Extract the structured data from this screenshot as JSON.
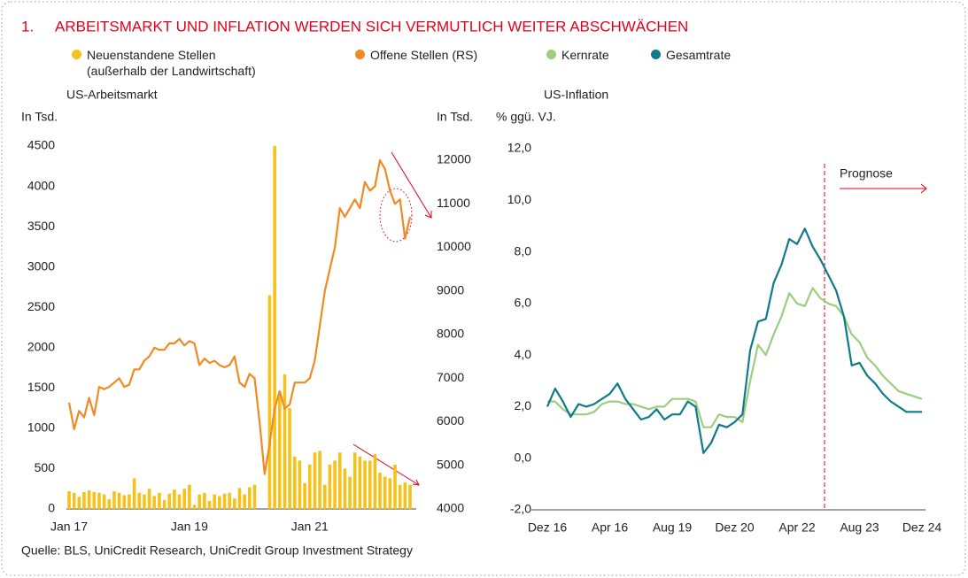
{
  "number": "1.",
  "title": "ARBEITSMARKT UND INFLATION WERDEN SICH VERMUTLICH WEITER ABSCHWÄCHEN",
  "source": "Quelle: BLS, UniCredit Research, UniCredit Group Investment Strategy",
  "chart_data": [
    {
      "type": "combo",
      "subtitle": "US-Arbeitsmarkt",
      "ylabel": "In Tsd.",
      "y2label": "In Tsd.",
      "categories": [
        "Jan 17",
        null,
        null,
        null,
        null,
        null,
        null,
        null,
        null,
        null,
        null,
        null,
        null,
        null,
        null,
        null,
        null,
        null,
        null,
        null,
        null,
        null,
        null,
        null,
        "Jan 19",
        null,
        null,
        null,
        null,
        null,
        null,
        null,
        null,
        null,
        null,
        null,
        null,
        null,
        null,
        null,
        null,
        null,
        null,
        null,
        null,
        null,
        null,
        null,
        "Jan 21",
        null,
        null,
        null,
        null,
        null,
        null,
        null,
        null,
        null,
        null,
        null,
        null,
        null,
        null,
        null,
        null,
        null,
        null,
        null,
        null
      ],
      "series": [
        {
          "name": "Neuenstandene Stellen\n(außerhalb der Landwirtschaft)",
          "type": "bar",
          "color": "#f5c21b",
          "values": [
            220,
            200,
            150,
            210,
            230,
            210,
            200,
            180,
            120,
            220,
            200,
            170,
            180,
            380,
            200,
            180,
            250,
            160,
            200,
            110,
            190,
            240,
            180,
            250,
            300,
            50,
            180,
            200,
            100,
            180,
            160,
            190,
            200,
            130,
            260,
            180,
            270,
            300,
            0,
            0,
            2650,
            4500,
            1450,
            1670,
            1250,
            650,
            600,
            320,
            550,
            700,
            720,
            300,
            550,
            600,
            700,
            500,
            400,
            700,
            650,
            600,
            600,
            680,
            450,
            400,
            380,
            550,
            300,
            330,
            300
          ]
        },
        {
          "name": "Offene Stellen (RS)",
          "type": "line",
          "axis": "y2",
          "color": "#f08a24",
          "values": [
            6440,
            5830,
            6250,
            6100,
            6550,
            6150,
            6800,
            6750,
            6800,
            6900,
            7000,
            6800,
            6850,
            7200,
            7200,
            7400,
            7500,
            7700,
            7650,
            7650,
            7800,
            7800,
            7900,
            7750,
            7850,
            7800,
            7300,
            7450,
            7350,
            7400,
            7300,
            7250,
            7300,
            7500,
            6900,
            6800,
            7100,
            7000,
            6000,
            4800,
            5500,
            6300,
            6700,
            6300,
            6400,
            6900,
            6900,
            6900,
            7000,
            7400,
            8200,
            9000,
            9500,
            10000,
            10900,
            10700,
            10900,
            11100,
            10900,
            11500,
            11300,
            11400,
            12000,
            11800,
            11300,
            11000,
            11100,
            10200,
            10700
          ]
        }
      ],
      "ylim": [
        0,
        4500
      ],
      "yticks": [
        0,
        500,
        1000,
        1500,
        2000,
        2500,
        3000,
        3500,
        4000,
        4500
      ],
      "y2lim": [
        4000,
        12000
      ],
      "y2ticks": [
        4000,
        5000,
        6000,
        7000,
        8000,
        9000,
        10000,
        11000,
        12000
      ],
      "grid": false
    },
    {
      "type": "line",
      "subtitle": "US-Inflation",
      "ylabel": "% ggü. VJ.",
      "annotation": "Prognose",
      "categories": [
        "Dez 16",
        null,
        null,
        null,
        null,
        null,
        null,
        null,
        "Apr 16",
        null,
        null,
        null,
        null,
        null,
        null,
        null,
        "Aug 19",
        null,
        null,
        null,
        null,
        null,
        null,
        null,
        "Dez 20",
        null,
        null,
        null,
        null,
        null,
        null,
        null,
        "Apr 22",
        null,
        null,
        null,
        null,
        null,
        null,
        null,
        "Aug 23",
        null,
        null,
        null,
        null,
        null,
        null,
        null,
        "Dez 24"
      ],
      "series": [
        {
          "name": "Kernrate",
          "color": "#9dcd7f",
          "values": [
            2.2,
            2.2,
            1.9,
            1.7,
            1.7,
            1.7,
            1.8,
            2.1,
            2.2,
            2.2,
            2.1,
            2.1,
            2.0,
            1.9,
            2.0,
            2.0,
            2.3,
            2.3,
            2.3,
            2.2,
            1.2,
            1.2,
            1.7,
            1.6,
            1.6,
            1.4,
            3.0,
            4.4,
            4.0,
            4.8,
            5.5,
            6.4,
            6.0,
            5.9,
            6.6,
            6.2,
            6.0,
            5.9,
            5.5,
            4.8,
            4.5,
            3.9,
            3.6,
            3.2,
            2.9,
            2.6,
            2.5,
            2.4,
            2.3
          ]
        },
        {
          "name": "Gesamtrate",
          "color": "#0f7a8a",
          "values": [
            2.0,
            2.7,
            2.2,
            1.6,
            2.1,
            2.0,
            2.1,
            2.3,
            2.5,
            2.9,
            2.3,
            1.9,
            1.5,
            1.6,
            1.9,
            1.5,
            1.7,
            1.7,
            2.2,
            2.0,
            0.2,
            0.6,
            1.3,
            1.2,
            1.4,
            1.7,
            4.2,
            5.3,
            5.4,
            6.8,
            7.5,
            8.5,
            8.3,
            8.9,
            8.2,
            7.7,
            7.1,
            6.5,
            5.5,
            3.6,
            3.7,
            3.2,
            2.9,
            2.5,
            2.2,
            2.0,
            1.8,
            1.8,
            1.8
          ]
        }
      ],
      "ylim": [
        -2,
        12
      ],
      "yticks": [
        {
          "value": -2,
          "label": "-2,0"
        },
        {
          "value": 0,
          "label": "0,0"
        },
        {
          "value": 2,
          "label": "2,0"
        },
        {
          "value": 4,
          "label": "4,0"
        },
        {
          "value": 6,
          "label": "6,0"
        },
        {
          "value": 8,
          "label": "8,0"
        },
        {
          "value": 10,
          "label": "10,0"
        },
        {
          "value": 12,
          "label": "12,0"
        }
      ],
      "grid": false
    }
  ]
}
